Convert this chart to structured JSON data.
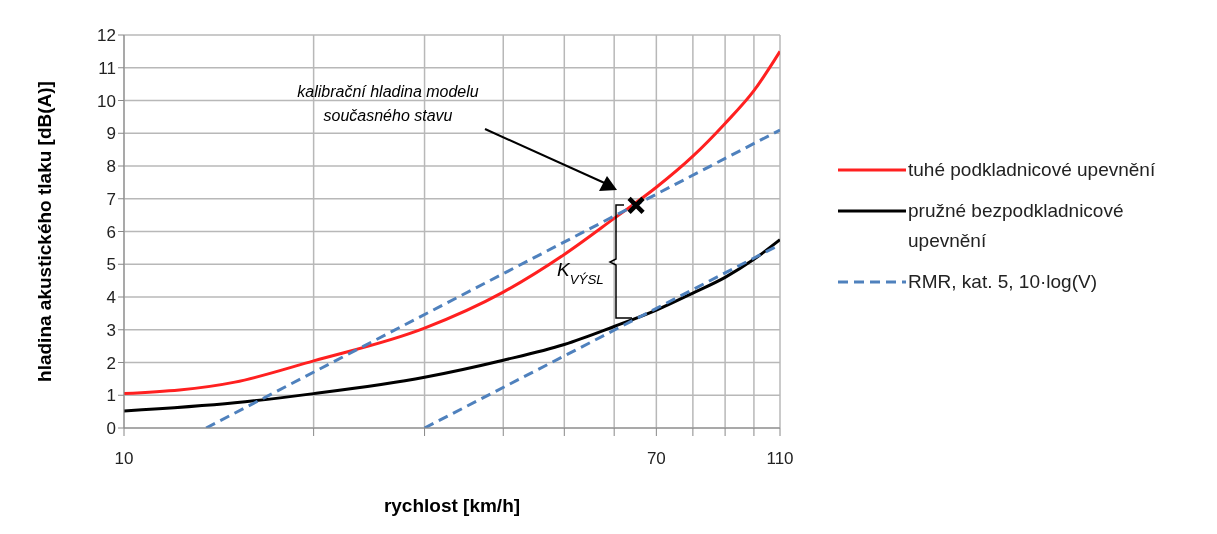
{
  "chart_data": {
    "type": "line",
    "xlabel": "rychlost [km/h]",
    "ylabel": "hladina akustického tlaku [dB(A)]",
    "log": "x",
    "xlim": [
      10,
      110
    ],
    "ylim": [
      0,
      12
    ],
    "xticks": [
      10,
      {
        "value": 20,
        "label": null
      },
      {
        "value": 30,
        "label": null
      },
      {
        "value": 40,
        "label": null
      },
      {
        "value": 50,
        "label": null
      },
      {
        "value": 60,
        "label": null
      },
      70,
      {
        "value": 80,
        "label": null
      },
      {
        "value": 90,
        "label": null
      },
      {
        "value": 100,
        "label": null
      },
      110
    ],
    "yticks": [
      0,
      1,
      2,
      3,
      4,
      5,
      6,
      7,
      8,
      9,
      10,
      11,
      12
    ],
    "grid": true,
    "legend": "right",
    "series": [
      {
        "name": "tuhé podkladnicové upevnění",
        "color": "#ff2020",
        "line_style": "solid",
        "x": [
          10,
          15,
          20,
          30,
          40,
          50,
          60,
          70,
          80,
          90,
          100,
          110
        ],
        "values": [
          1.05,
          1.4,
          2.05,
          3.05,
          4.15,
          5.3,
          6.4,
          7.35,
          8.3,
          9.3,
          10.3,
          11.5
        ]
      },
      {
        "name": "pružné bezpodkladnicové upevnění",
        "color": "#000000",
        "line_style": "solid",
        "x": [
          10,
          15,
          20,
          30,
          40,
          50,
          60,
          70,
          80,
          90,
          100,
          110
        ],
        "values": [
          0.52,
          0.77,
          1.05,
          1.55,
          2.07,
          2.55,
          3.1,
          3.6,
          4.12,
          4.6,
          5.15,
          5.75
        ]
      },
      {
        "name": "RMR, kat. 5, 10·log(V)",
        "color": "#4f81bd",
        "line_style": "dashed",
        "x": [
          13.5,
          110
        ],
        "values": [
          0,
          9.1
        ]
      },
      {
        "color": "#4f81bd",
        "line_style": "dashed",
        "x": [
          30,
          110
        ],
        "values": [
          0,
          5.6
        ]
      },
      {
        "type": "scatter",
        "color": "#000000",
        "marker": "cross",
        "x": [
          65
        ],
        "values": [
          6.8
        ]
      }
    ],
    "annotations": [
      "kalibrační hladina modelu současného stavu",
      "K$_{VÝSL}$"
    ]
  }
}
